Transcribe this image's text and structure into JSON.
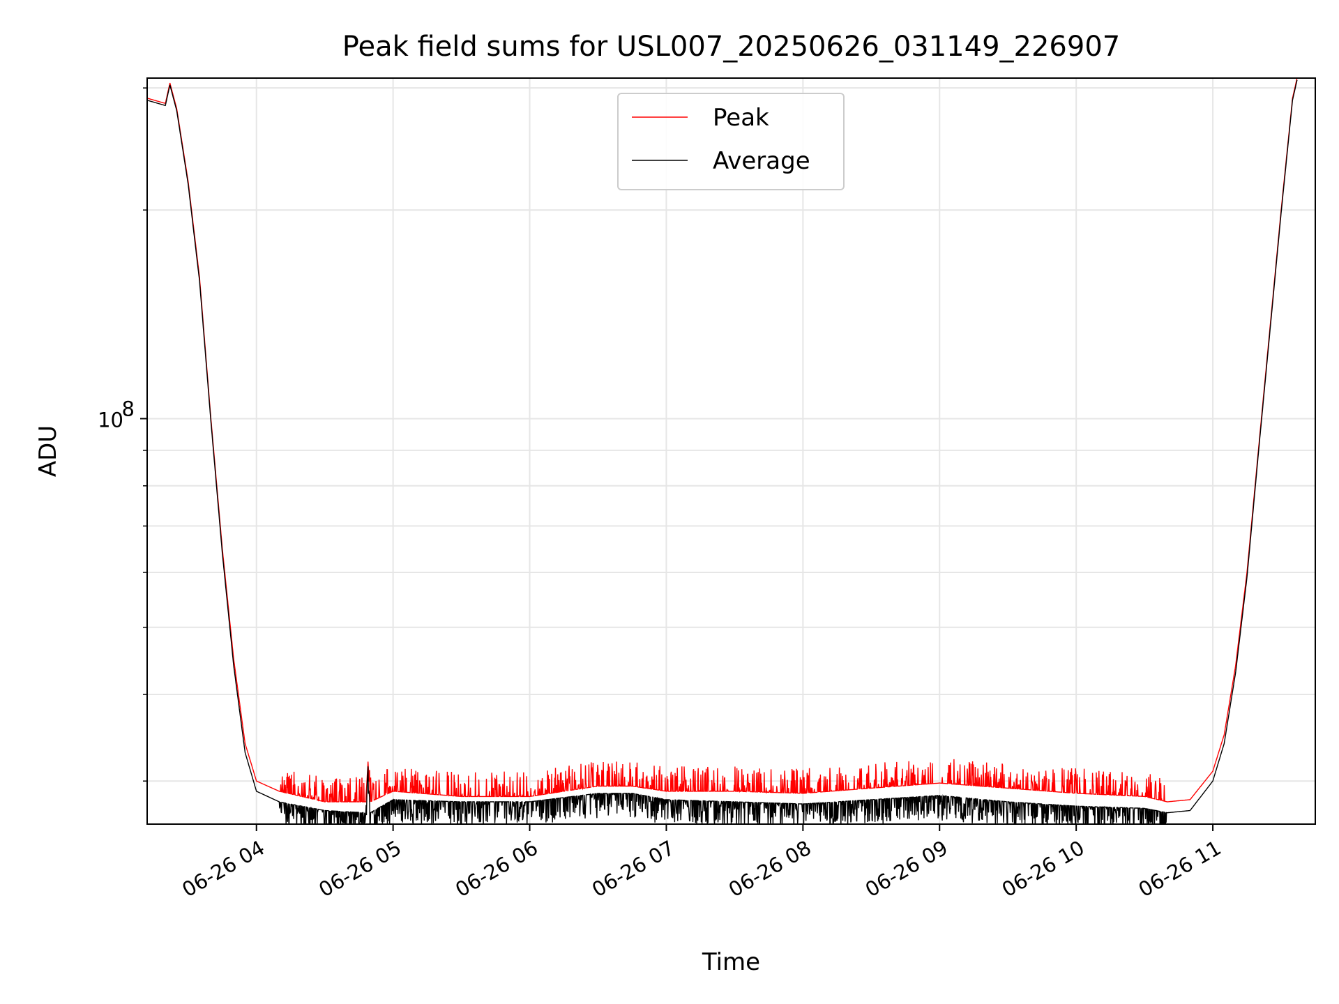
{
  "chart_data": {
    "type": "line",
    "title": "Peak field sums for USL007_20250626_031149_226907",
    "xlabel": "Time",
    "ylabel": "ADU",
    "x_scale": "time",
    "y_scale": "log",
    "xlim": [
      "2025-06-26 03:12",
      "2025-06-26 11:45"
    ],
    "ylim": [
      26000000.0,
      310000000.0
    ],
    "x_ticks": [
      "06-26 04",
      "06-26 05",
      "06-26 06",
      "06-26 07",
      "06-26 08",
      "06-26 09",
      "06-26 10",
      "06-26 11"
    ],
    "y_ticks": [
      {
        "value": 100000000,
        "label": "10",
        "exponent": "8"
      }
    ],
    "y_minor_ticks": [
      30000000,
      40000000,
      50000000,
      60000000,
      70000000,
      80000000,
      90000000,
      200000000,
      300000000
    ],
    "grid": true,
    "legend_position": "top-center",
    "series": [
      {
        "name": "Peak",
        "color": "#ff0000",
        "x": [
          "2025-06-26 03:12",
          "2025-06-26 03:20",
          "2025-06-26 03:22",
          "2025-06-26 03:25",
          "2025-06-26 03:30",
          "2025-06-26 03:35",
          "2025-06-26 03:40",
          "2025-06-26 03:45",
          "2025-06-26 03:50",
          "2025-06-26 03:55",
          "2025-06-26 04:00",
          "2025-06-26 04:10",
          "2025-06-26 04:30",
          "2025-06-26 04:48",
          "2025-06-26 04:49",
          "2025-06-26 04:50",
          "2025-06-26 05:00",
          "2025-06-26 05:30",
          "2025-06-26 06:00",
          "2025-06-26 06:30",
          "2025-06-26 06:45",
          "2025-06-26 07:00",
          "2025-06-26 07:30",
          "2025-06-26 08:00",
          "2025-06-26 08:30",
          "2025-06-26 09:00",
          "2025-06-26 09:30",
          "2025-06-26 10:00",
          "2025-06-26 10:30",
          "2025-06-26 10:40",
          "2025-06-26 10:50",
          "2025-06-26 11:00",
          "2025-06-26 11:05",
          "2025-06-26 11:10",
          "2025-06-26 11:15",
          "2025-06-26 11:20",
          "2025-06-26 11:30",
          "2025-06-26 11:35",
          "2025-06-26 11:37"
        ],
        "y": [
          290000000,
          285000000,
          305000000,
          280000000,
          220000000,
          160000000,
          100000000,
          65000000,
          45000000,
          34000000,
          30000000,
          29000000,
          28000000,
          28000000,
          32000000,
          28000000,
          29000000,
          28500000,
          28500000,
          29500000,
          29500000,
          29000000,
          29000000,
          28800000,
          29300000,
          29800000,
          29300000,
          28800000,
          28500000,
          28000000,
          28200000,
          31000000,
          35000000,
          44000000,
          60000000,
          90000000,
          200000000,
          290000000,
          310000000
        ]
      },
      {
        "name": "Average",
        "color": "#000000",
        "x": [
          "2025-06-26 03:12",
          "2025-06-26 03:20",
          "2025-06-26 03:22",
          "2025-06-26 03:25",
          "2025-06-26 03:30",
          "2025-06-26 03:35",
          "2025-06-26 03:40",
          "2025-06-26 03:45",
          "2025-06-26 03:50",
          "2025-06-26 03:55",
          "2025-06-26 04:00",
          "2025-06-26 04:10",
          "2025-06-26 04:30",
          "2025-06-26 04:48",
          "2025-06-26 04:49",
          "2025-06-26 04:50",
          "2025-06-26 05:00",
          "2025-06-26 05:30",
          "2025-06-26 06:00",
          "2025-06-26 06:30",
          "2025-06-26 06:45",
          "2025-06-26 07:00",
          "2025-06-26 07:30",
          "2025-06-26 08:00",
          "2025-06-26 08:30",
          "2025-06-26 09:00",
          "2025-06-26 09:30",
          "2025-06-26 10:00",
          "2025-06-26 10:30",
          "2025-06-26 10:40",
          "2025-06-26 10:50",
          "2025-06-26 11:00",
          "2025-06-26 11:05",
          "2025-06-26 11:10",
          "2025-06-26 11:15",
          "2025-06-26 11:20",
          "2025-06-26 11:30",
          "2025-06-26 11:35",
          "2025-06-26 11:37"
        ],
        "y": [
          288000000,
          283000000,
          303000000,
          278000000,
          218000000,
          158000000,
          99000000,
          64000000,
          44000000,
          33000000,
          29000000,
          28000000,
          27200000,
          27000000,
          31500000,
          27000000,
          28200000,
          28000000,
          28000000,
          28800000,
          28800000,
          28200000,
          28000000,
          27800000,
          28200000,
          28600000,
          28000000,
          27600000,
          27400000,
          27000000,
          27200000,
          30000000,
          34000000,
          43000000,
          59000000,
          89000000,
          198000000,
          288000000,
          308000000
        ]
      }
    ]
  }
}
